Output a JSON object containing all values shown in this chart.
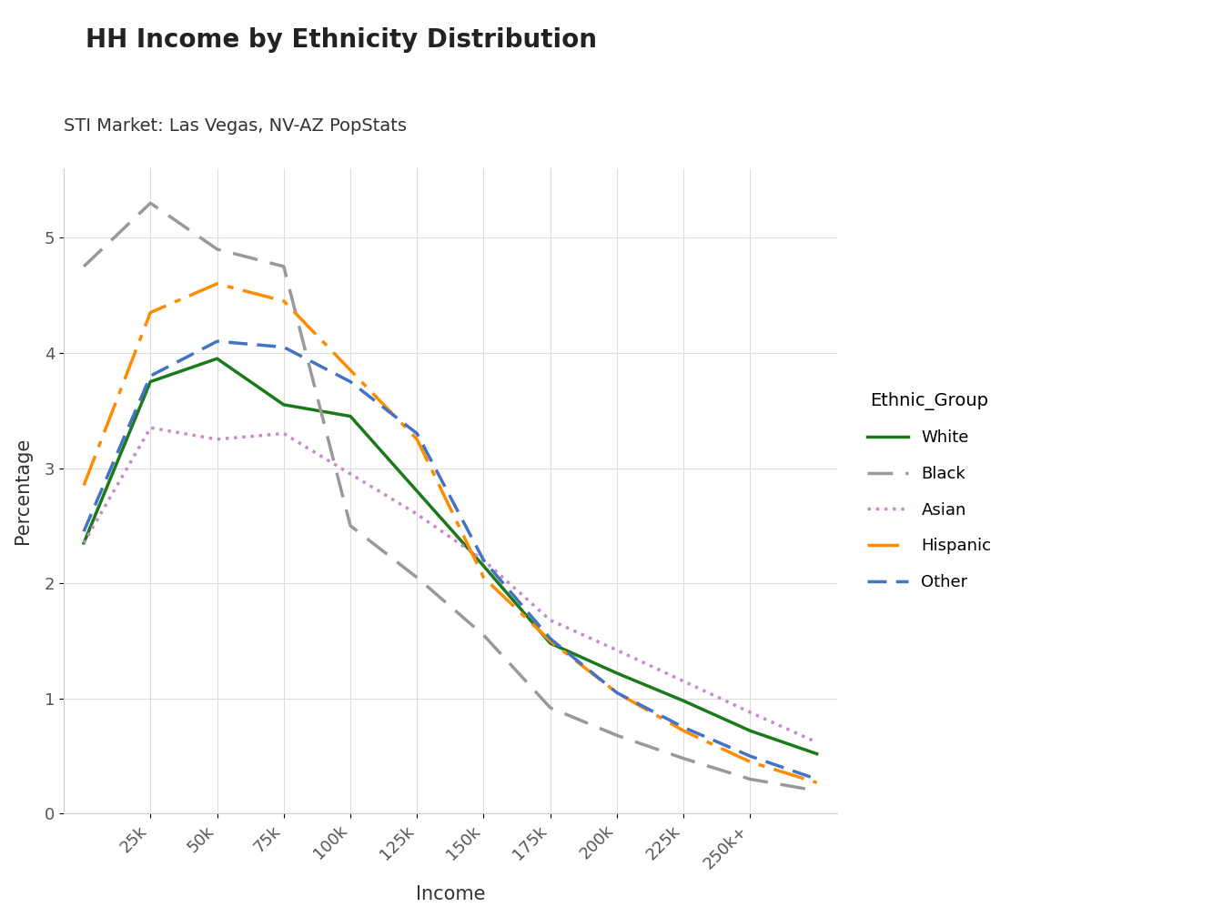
{
  "title": "HH Income by Ethnicity Distribution",
  "subtitle": "STI Market: Las Vegas, NV-AZ PopStats",
  "xlabel": "Income",
  "ylabel": "Percentage",
  "legend_title": "Ethnic_Group",
  "x_tick_labels": [
    "25k",
    "50k",
    "75k",
    "100k",
    "125k",
    "150k",
    "175k",
    "200k",
    "225k",
    "250k+"
  ],
  "ylim": [
    0,
    5.6
  ],
  "background_color": "#ffffff",
  "grid_color": "#dddddd",
  "series": {
    "White": {
      "color": "#1a7a1a",
      "values": [
        2.35,
        3.75,
        3.95,
        3.55,
        3.45,
        2.8,
        2.15,
        1.48,
        1.22,
        0.98,
        0.72,
        0.52
      ]
    },
    "Black": {
      "color": "#999999",
      "values": [
        4.75,
        5.3,
        4.9,
        4.75,
        2.5,
        2.05,
        1.55,
        0.92,
        0.68,
        0.48,
        0.3,
        0.2
      ]
    },
    "Asian": {
      "color": "#cc88cc",
      "values": [
        2.35,
        3.35,
        3.25,
        3.3,
        2.95,
        2.6,
        2.2,
        1.68,
        1.42,
        1.15,
        0.88,
        0.62
      ]
    },
    "Hispanic": {
      "color": "#ff8c00",
      "values": [
        2.85,
        4.35,
        4.6,
        4.45,
        3.85,
        3.25,
        2.05,
        1.5,
        1.05,
        0.72,
        0.45,
        0.27
      ]
    },
    "Other": {
      "color": "#4472c4",
      "values": [
        2.45,
        3.8,
        4.1,
        4.05,
        3.75,
        3.3,
        2.2,
        1.52,
        1.05,
        0.75,
        0.5,
        0.3
      ]
    }
  }
}
